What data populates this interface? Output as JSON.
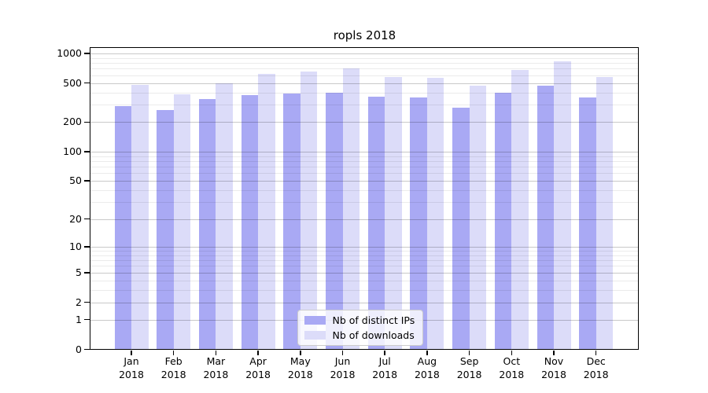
{
  "chart_data": {
    "type": "bar",
    "title": "ropls 2018",
    "scale": "log1p",
    "months": [
      "Jan",
      "Feb",
      "Mar",
      "Apr",
      "May",
      "Jun",
      "Jul",
      "Aug",
      "Sep",
      "Oct",
      "Nov",
      "Dec"
    ],
    "year_label": "2018",
    "series": [
      {
        "name": "Nb of distinct IPs",
        "color": "#a9a9f4",
        "values": [
          292,
          264,
          341,
          374,
          393,
          399,
          362,
          355,
          281,
          398,
          472,
          357
        ]
      },
      {
        "name": "Nb of downloads",
        "color": "#dcdcf9",
        "values": [
          481,
          387,
          500,
          618,
          657,
          700,
          572,
          561,
          469,
          678,
          834,
          577
        ]
      }
    ],
    "y_ticks": [
      0,
      1,
      2,
      5,
      10,
      20,
      50,
      100,
      200,
      500,
      1000
    ],
    "y_minor_gridlines": [
      3,
      4,
      6,
      7,
      8,
      9,
      30,
      40,
      60,
      70,
      80,
      90,
      300,
      400,
      600,
      700,
      800,
      900
    ],
    "ylim": [
      0,
      1150
    ],
    "grid": true,
    "legend_position": "lower center",
    "axis_color": "#000000",
    "major_grid_color": "#c9c9c9",
    "minor_grid_color": "#ebebeb"
  }
}
